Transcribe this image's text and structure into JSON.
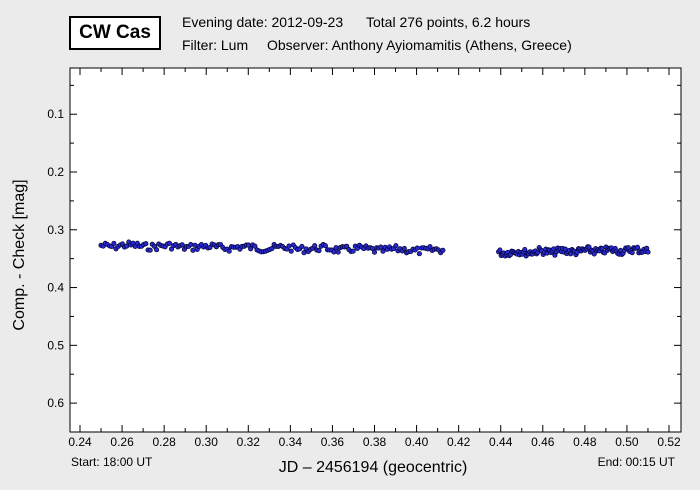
{
  "header": {
    "object_name": "CW Cas",
    "evening_date": "Evening date: 2012-09-23",
    "total": "Total 276 points, 6.2 hours",
    "filter": "Filter: Lum",
    "observer": "Observer: Anthony Ayiomamitis (Athens, Greece)"
  },
  "footer": {
    "start": "Start: 18:00 UT",
    "end": "End: 00:15 UT"
  },
  "colors": {
    "marker_fill": "#2a2acc",
    "marker_edge": "#000033",
    "background": "#ebebeb"
  },
  "chart_data": {
    "type": "scatter",
    "xlabel": "JD – 2456194  (geocentric)",
    "ylabel": "Comp. - Check [mag]",
    "xlim": [
      0.24,
      0.52
    ],
    "ylim": [
      0.65,
      0.02
    ],
    "y_inverted": true,
    "grid": false,
    "x_ticks": [
      "0.24",
      "0.26",
      "0.28",
      "0.30",
      "0.32",
      "0.34",
      "0.36",
      "0.38",
      "0.40",
      "0.42",
      "0.44",
      "0.46",
      "0.48",
      "0.50",
      "0.52"
    ],
    "y_ticks": [
      "0.1",
      "0.2",
      "0.3",
      "0.4",
      "0.5",
      "0.6"
    ],
    "segments": [
      {
        "x_start": 0.25,
        "x_end": 0.4125,
        "n": 161,
        "y_start": 0.327,
        "y_end": 0.336
      },
      {
        "x_start": 0.439,
        "x_end": 0.51,
        "n": 115,
        "y_start": 0.339,
        "y_end": 0.335
      }
    ],
    "total_points": 276
  }
}
